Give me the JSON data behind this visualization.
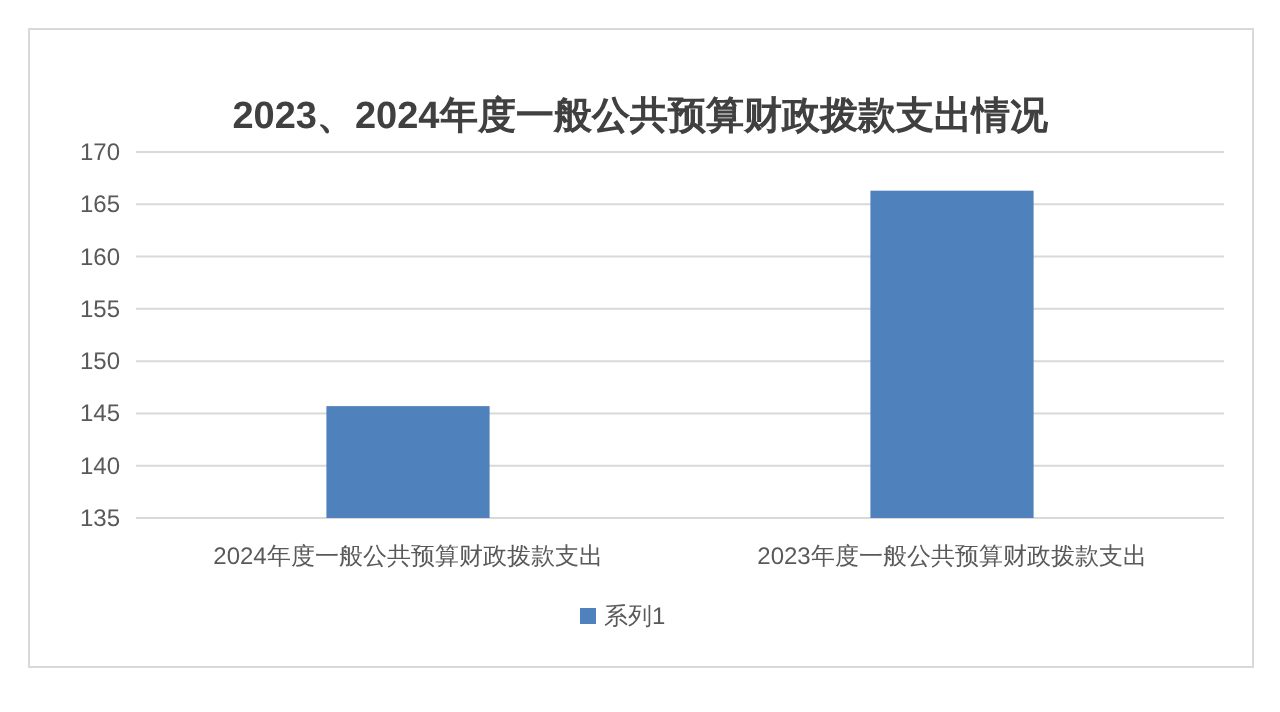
{
  "chart_data": {
    "type": "bar",
    "title": "2023、2024年度一般公共预算财政拨款支出情况",
    "categories": [
      "2024年度一般公共预算财政拨款支出",
      "2023年度一般公共预算财政拨款支出"
    ],
    "series": [
      {
        "name": "系列1",
        "color": "#4f81bd",
        "values": [
          145.7,
          166.3
        ]
      }
    ],
    "ylim": [
      135,
      170
    ],
    "yticks": [
      135,
      140,
      145,
      150,
      155,
      160,
      165,
      170
    ],
    "grid": "y",
    "legend": "bottom"
  }
}
